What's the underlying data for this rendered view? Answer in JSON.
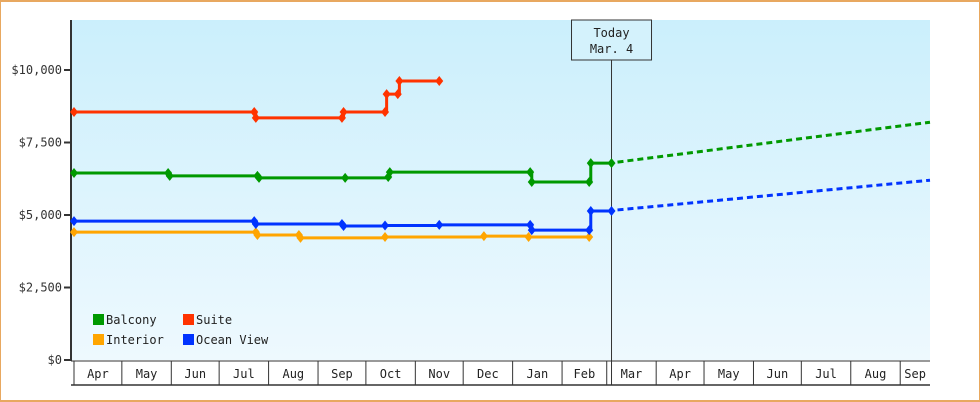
{
  "chart_data": {
    "type": "line",
    "title": "",
    "xlabel": "",
    "ylabel": "",
    "ylim": [
      0,
      11380
    ],
    "y_ticks": [
      "$0",
      "$2,500",
      "$5,000",
      "$7,500",
      "$10,000"
    ],
    "y_tick_values": [
      0,
      2500,
      5000,
      7500,
      10000
    ],
    "x_ticks": [
      "Apr",
      "May",
      "Jun",
      "Jul",
      "Aug",
      "Sep",
      "Oct",
      "Nov",
      "Dec",
      "Jan",
      "Feb",
      "Mar",
      "Apr",
      "May",
      "Jun",
      "Jul",
      "Aug",
      "Sep"
    ],
    "grid": false,
    "legend_position": "bottom-left inside plot",
    "annotation": {
      "line1": "Today",
      "line2": "Mar. 4",
      "x_day": 337
    },
    "series": [
      {
        "name": "Balcony",
        "color": "#009900",
        "points": [
          [
            0,
            6450
          ],
          [
            59,
            6450
          ],
          [
            60,
            6350
          ],
          [
            115,
            6350
          ],
          [
            116,
            6280
          ],
          [
            170,
            6280
          ],
          [
            197,
            6310
          ],
          [
            198,
            6480
          ],
          [
            286,
            6480
          ],
          [
            287,
            6140
          ],
          [
            323,
            6140
          ],
          [
            324,
            6790
          ],
          [
            337,
            6790
          ]
        ],
        "forecast": [
          [
            337,
            6790
          ],
          [
            540,
            8200
          ]
        ]
      },
      {
        "name": "Suite",
        "color": "#ff3300",
        "points": [
          [
            0,
            8550
          ],
          [
            113,
            8550
          ],
          [
            114,
            8350
          ],
          [
            168,
            8350
          ],
          [
            169,
            8550
          ],
          [
            195,
            8550
          ],
          [
            196,
            9170
          ],
          [
            203,
            9170
          ],
          [
            204,
            9620
          ],
          [
            229,
            9620
          ]
        ],
        "forecast": []
      },
      {
        "name": "Interior",
        "color": "#ffa500",
        "points": [
          [
            0,
            4410
          ],
          [
            114,
            4410
          ],
          [
            115,
            4310
          ],
          [
            141,
            4310
          ],
          [
            142,
            4210
          ],
          [
            195,
            4240
          ],
          [
            257,
            4270
          ],
          [
            285,
            4240
          ],
          [
            323,
            4240
          ]
        ],
        "forecast": []
      },
      {
        "name": "Ocean View",
        "color": "#0033ff",
        "points": [
          [
            0,
            4790
          ],
          [
            113,
            4790
          ],
          [
            114,
            4690
          ],
          [
            168,
            4690
          ],
          [
            169,
            4620
          ],
          [
            195,
            4640
          ],
          [
            229,
            4660
          ],
          [
            286,
            4660
          ],
          [
            287,
            4480
          ],
          [
            323,
            4480
          ],
          [
            324,
            5140
          ],
          [
            337,
            5140
          ]
        ],
        "forecast": [
          [
            337,
            5140
          ],
          [
            540,
            6200
          ]
        ]
      }
    ]
  },
  "legend": [
    {
      "label": "Balcony",
      "color": "#009900"
    },
    {
      "label": "Suite",
      "color": "#ff3300"
    },
    {
      "label": "Interior",
      "color": "#ffa500"
    },
    {
      "label": "Ocean View",
      "color": "#0033ff"
    }
  ],
  "today_box": {
    "line1": "Today",
    "line2": "Mar. 4"
  }
}
